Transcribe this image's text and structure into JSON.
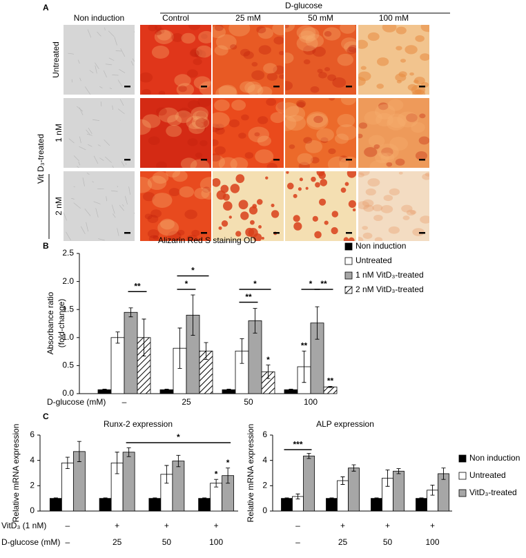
{
  "panel_a": {
    "label": "A",
    "group_header": "D-glucose",
    "columns": [
      "Non induction",
      "Control",
      "25 mM",
      "50 mM",
      "100 mM"
    ],
    "rows": [
      "Untreated",
      "1 nM",
      "2 nM"
    ],
    "row_group": "Vit D₃-treated"
  },
  "chart_data": [
    {
      "type": "bar",
      "panel": "B",
      "title": "Alizarin Red S staining OD",
      "ylabel": [
        "Absorbance ratio",
        "(fold-change)"
      ],
      "xlabel": "D-glucose (mM)",
      "categories": [
        "–",
        "25",
        "50",
        "100"
      ],
      "series": [
        {
          "name": "Non induction",
          "color": "#000000",
          "values": [
            0.07,
            0.07,
            0.07,
            0.07
          ],
          "errors": [
            0.01,
            0.01,
            0.01,
            0.01
          ]
        },
        {
          "name": "Untreated",
          "color": "#ffffff",
          "values": [
            1.0,
            0.81,
            0.76,
            0.48
          ],
          "errors": [
            0.1,
            0.36,
            0.22,
            0.28
          ]
        },
        {
          "name": "1 nM VitD₃-treated",
          "color": "#a6a6a6",
          "values": [
            1.45,
            1.4,
            1.3,
            1.26
          ],
          "errors": [
            0.08,
            0.36,
            0.22,
            0.29
          ]
        },
        {
          "name": "2 nM VitD₃-treated",
          "color": "#ffffff",
          "hatch": true,
          "values": [
            1.0,
            0.76,
            0.39,
            0.12
          ],
          "errors": [
            0.33,
            0.15,
            0.12,
            0.01
          ]
        }
      ],
      "ylim": [
        0,
        2.5
      ],
      "yticks": [
        {
          "value": 0,
          "label": "0.0"
        },
        {
          "value": 0.5,
          "label": "0.5"
        },
        {
          "value": 1,
          "label": "1.0"
        },
        {
          "value": 1.5,
          "label": "1.5"
        },
        {
          "value": 2,
          "label": "2.0"
        },
        {
          "value": 2.5,
          "label": "2.5"
        }
      ],
      "annotations": [
        "**",
        "*",
        "*",
        "**",
        "*",
        "*",
        "**",
        "**",
        "*",
        "**"
      ],
      "legend": "right"
    },
    {
      "type": "bar",
      "panel": "C",
      "title": "Runx-2 expression",
      "ylabel": "Relative mRNA expression",
      "treatment_label": "VitD₃ (1 nM)",
      "treatment": [
        "–",
        "+",
        "+",
        "+"
      ],
      "xlabel": "D-glucose (mM)",
      "categories": [
        "–",
        "25",
        "50",
        "100"
      ],
      "series": [
        {
          "name": "Non induction",
          "color": "#000000",
          "values": [
            1,
            1,
            1,
            1
          ],
          "errors": [
            0.04,
            0.04,
            0.04,
            0.04
          ]
        },
        {
          "name": "Untreated",
          "color": "#ffffff",
          "values": [
            3.8,
            3.8,
            2.9,
            2.2
          ],
          "errors": [
            0.45,
            0.85,
            0.7,
            0.3
          ]
        },
        {
          "name": "VitD₃-treated",
          "color": "#a6a6a6",
          "values": [
            4.7,
            4.65,
            3.95,
            2.8
          ],
          "errors": [
            0.8,
            0.35,
            0.45,
            0.6
          ]
        }
      ],
      "ylim": [
        0,
        6
      ],
      "yticks": [
        0,
        2,
        4,
        6
      ],
      "annotations": [
        "*",
        "*",
        "*"
      ]
    },
    {
      "type": "bar",
      "title": "ALP expression",
      "ylabel": "Relative mRNA expression",
      "treatment": [
        "–",
        "+",
        "+",
        "+"
      ],
      "categories": [
        "–",
        "25",
        "50",
        "100"
      ],
      "series": [
        {
          "name": "Non induction",
          "color": "#000000",
          "values": [
            1,
            1,
            1,
            1
          ],
          "errors": [
            0.04,
            0.04,
            0.04,
            0.04
          ]
        },
        {
          "name": "Untreated",
          "color": "#ffffff",
          "values": [
            1.15,
            2.4,
            2.6,
            1.65
          ],
          "errors": [
            0.2,
            0.3,
            0.65,
            0.4
          ]
        },
        {
          "name": "VitD₃-treated",
          "color": "#a6a6a6",
          "values": [
            4.35,
            3.4,
            3.15,
            2.95
          ],
          "errors": [
            0.2,
            0.25,
            0.2,
            0.45
          ]
        }
      ],
      "ylim": [
        0,
        6
      ],
      "yticks": [
        0,
        2,
        4,
        6
      ],
      "annotations": [
        "***"
      ],
      "legend": "right"
    }
  ]
}
